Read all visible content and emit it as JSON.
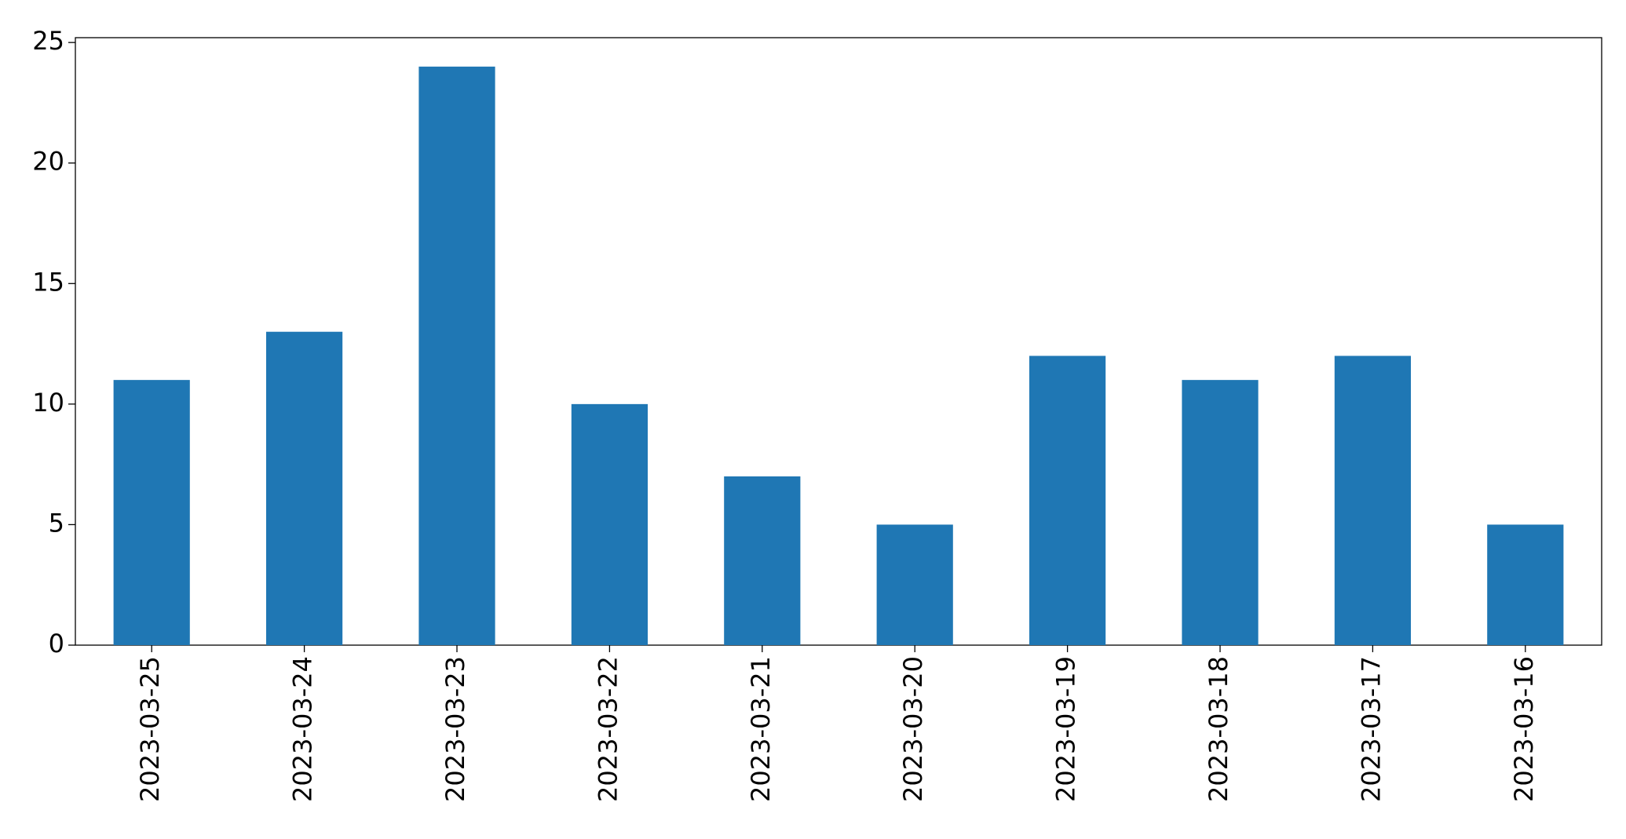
{
  "chart_data": {
    "type": "bar",
    "categories": [
      "2023-03-25",
      "2023-03-24",
      "2023-03-23",
      "2023-03-22",
      "2023-03-21",
      "2023-03-20",
      "2023-03-19",
      "2023-03-18",
      "2023-03-17",
      "2023-03-16"
    ],
    "values": [
      11,
      13,
      24,
      10,
      7,
      5,
      12,
      11,
      12,
      5
    ],
    "color": "#1f77b4",
    "ylim": [
      0,
      25.2
    ],
    "yticks": [
      0,
      5,
      10,
      15,
      20,
      25
    ],
    "grid": false
  }
}
